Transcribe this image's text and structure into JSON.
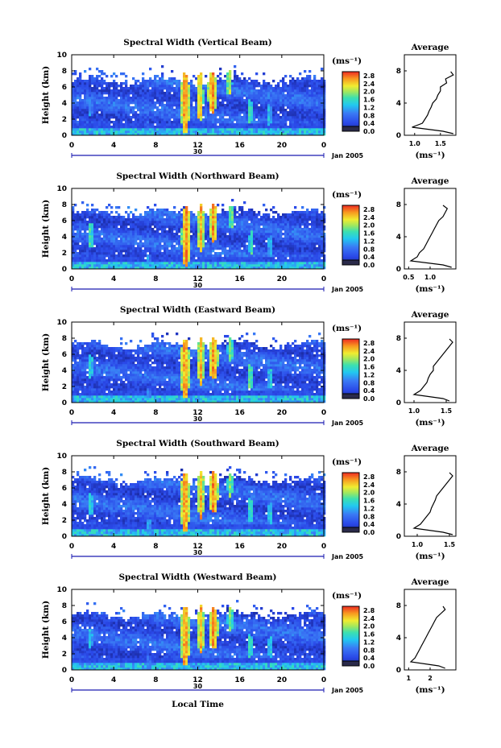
{
  "figure": {
    "xlabel": "Local Time",
    "day_label": "30",
    "month_label": "Jan 2005",
    "ylabel": "Height (km)",
    "colorbar_unit": "(ms⁻¹)",
    "average_title": "Average",
    "average_xlabel": "(ms⁻¹)"
  },
  "chart_data": [
    {
      "type": "heatmap",
      "title": "Spectral Width (Vertical Beam)",
      "x_ticks": [
        "0",
        "4",
        "8",
        "12",
        "16",
        "20",
        "0"
      ],
      "xlim": [
        0,
        24
      ],
      "y_ticks": [
        "0",
        "2",
        "4",
        "6",
        "8",
        "10"
      ],
      "ylim": [
        0,
        10
      ],
      "colorbar_ticks": [
        "0.0",
        "0.4",
        "0.8",
        "1.2",
        "1.6",
        "2.0",
        "2.4",
        "2.8"
      ],
      "clim": [
        0,
        3.0
      ],
      "echo_top_km": 6.8,
      "hotspots": [
        [
          1.8,
          3.5,
          0.25,
          1.2,
          1.4
        ],
        [
          7.2,
          1.2,
          0.25,
          0.6,
          1.0
        ],
        [
          10.8,
          4.0,
          0.45,
          3.8,
          3.0
        ],
        [
          12.2,
          4.8,
          0.35,
          3.0,
          2.8
        ],
        [
          13.4,
          5.3,
          0.45,
          2.6,
          3.0
        ],
        [
          15.0,
          6.5,
          0.3,
          1.5,
          2.4
        ],
        [
          17.0,
          3.0,
          0.25,
          1.5,
          2.0
        ],
        [
          18.8,
          2.6,
          0.25,
          1.4,
          1.6
        ]
      ],
      "avg_profile": {
        "xlim": [
          0.8,
          1.8
        ],
        "x_ticks": [
          "1.0",
          "1.5"
        ],
        "heights": [
          0.2,
          0.5,
          1.0,
          1.5,
          2.0,
          2.5,
          3.0,
          3.5,
          4.0,
          4.5,
          5.0,
          5.5,
          6.0,
          6.5,
          7.0,
          7.5,
          7.9
        ],
        "values": [
          1.75,
          1.55,
          0.95,
          1.15,
          1.2,
          1.25,
          1.28,
          1.32,
          1.35,
          1.42,
          1.45,
          1.5,
          1.5,
          1.62,
          1.6,
          1.75,
          1.7
        ]
      }
    },
    {
      "type": "heatmap",
      "title": "Spectral Width (Northward Beam)",
      "x_ticks": [
        "0",
        "4",
        "8",
        "12",
        "16",
        "20",
        "0"
      ],
      "xlim": [
        0,
        24
      ],
      "y_ticks": [
        "0",
        "2",
        "4",
        "6",
        "8",
        "10"
      ],
      "ylim": [
        0,
        10
      ],
      "colorbar_ticks": [
        "0.0",
        "0.4",
        "0.8",
        "1.2",
        "1.6",
        "2.0",
        "2.4",
        "2.8"
      ],
      "clim": [
        0,
        3.0
      ],
      "echo_top_km": 7.0,
      "hotspots": [
        [
          1.8,
          4.2,
          0.3,
          1.6,
          2.0
        ],
        [
          7.3,
          1.3,
          0.25,
          0.6,
          1.4
        ],
        [
          10.9,
          4.0,
          0.45,
          3.8,
          3.0
        ],
        [
          12.3,
          5.0,
          0.35,
          3.0,
          2.8
        ],
        [
          13.5,
          5.6,
          0.4,
          2.4,
          3.0
        ],
        [
          15.2,
          6.5,
          0.3,
          1.5,
          2.2
        ],
        [
          17.1,
          3.2,
          0.25,
          1.5,
          2.0
        ],
        [
          18.9,
          2.8,
          0.25,
          1.4,
          1.6
        ]
      ],
      "avg_profile": {
        "xlim": [
          0.4,
          1.6
        ],
        "x_ticks": [
          "0.5",
          "1.0"
        ],
        "heights": [
          0.2,
          0.5,
          1.0,
          1.5,
          2.0,
          2.5,
          3.0,
          3.5,
          4.0,
          4.5,
          5.0,
          5.5,
          6.0,
          6.5,
          7.0,
          7.5,
          7.9
        ],
        "values": [
          1.5,
          1.3,
          0.55,
          0.7,
          0.75,
          0.85,
          0.9,
          0.95,
          1.0,
          1.05,
          1.1,
          1.15,
          1.2,
          1.3,
          1.35,
          1.4,
          1.3
        ]
      }
    },
    {
      "type": "heatmap",
      "title": "Spectral Width (Eastward Beam)",
      "x_ticks": [
        "0",
        "4",
        "8",
        "12",
        "16",
        "20",
        "0"
      ],
      "xlim": [
        0,
        24
      ],
      "y_ticks": [
        "0",
        "2",
        "4",
        "6",
        "8",
        "10"
      ],
      "ylim": [
        0,
        10
      ],
      "colorbar_ticks": [
        "0.0",
        "0.4",
        "0.8",
        "1.2",
        "1.6",
        "2.0",
        "2.4",
        "2.8"
      ],
      "clim": [
        0,
        3.0
      ],
      "echo_top_km": 7.2,
      "hotspots": [
        [
          1.8,
          4.5,
          0.3,
          1.4,
          1.8
        ],
        [
          7.3,
          1.3,
          0.25,
          0.6,
          1.2
        ],
        [
          10.8,
          4.2,
          0.45,
          3.8,
          3.0
        ],
        [
          12.3,
          5.2,
          0.35,
          3.0,
          2.8
        ],
        [
          13.5,
          5.5,
          0.45,
          2.6,
          3.0
        ],
        [
          15.1,
          6.6,
          0.3,
          1.5,
          2.2
        ],
        [
          17.0,
          3.2,
          0.25,
          1.6,
          2.2
        ],
        [
          18.9,
          3.0,
          0.25,
          1.4,
          1.8
        ]
      ],
      "avg_profile": {
        "xlim": [
          0.85,
          1.65
        ],
        "x_ticks": [
          "1.0",
          "1.5"
        ],
        "heights": [
          0.2,
          0.5,
          1.0,
          1.5,
          2.0,
          2.5,
          3.0,
          3.5,
          4.0,
          4.5,
          5.0,
          5.5,
          6.0,
          6.5,
          7.0,
          7.5,
          7.9
        ],
        "values": [
          1.55,
          1.45,
          1.0,
          1.1,
          1.15,
          1.2,
          1.22,
          1.25,
          1.3,
          1.3,
          1.35,
          1.4,
          1.45,
          1.5,
          1.55,
          1.6,
          1.55
        ]
      }
    },
    {
      "type": "heatmap",
      "title": "Spectral Width (Southward Beam)",
      "x_ticks": [
        "0",
        "4",
        "8",
        "12",
        "16",
        "20",
        "0"
      ],
      "xlim": [
        0,
        24
      ],
      "y_ticks": [
        "0",
        "2",
        "4",
        "6",
        "8",
        "10"
      ],
      "ylim": [
        0,
        10
      ],
      "colorbar_ticks": [
        "0.0",
        "0.4",
        "0.8",
        "1.2",
        "1.6",
        "2.0",
        "2.4",
        "2.8"
      ],
      "clim": [
        0,
        3.0
      ],
      "echo_top_km": 6.9,
      "hotspots": [
        [
          1.8,
          4.0,
          0.3,
          1.4,
          1.8
        ],
        [
          7.3,
          1.5,
          0.25,
          0.7,
          1.6
        ],
        [
          10.8,
          4.2,
          0.45,
          3.8,
          3.0
        ],
        [
          12.3,
          5.2,
          0.35,
          3.0,
          2.8
        ],
        [
          13.5,
          5.5,
          0.45,
          2.6,
          3.0
        ],
        [
          15.1,
          6.4,
          0.3,
          1.5,
          2.2
        ],
        [
          17.0,
          3.2,
          0.25,
          1.6,
          2.0
        ],
        [
          18.9,
          2.8,
          0.25,
          1.4,
          1.8
        ]
      ],
      "avg_profile": {
        "xlim": [
          0.8,
          1.6
        ],
        "x_ticks": [
          "1.0",
          "1.5"
        ],
        "heights": [
          0.2,
          0.5,
          1.0,
          1.5,
          2.0,
          2.5,
          3.0,
          3.5,
          4.0,
          4.5,
          5.0,
          5.5,
          6.0,
          6.5,
          7.0,
          7.5,
          7.9
        ],
        "values": [
          1.55,
          1.4,
          0.95,
          1.05,
          1.1,
          1.15,
          1.2,
          1.22,
          1.25,
          1.28,
          1.3,
          1.35,
          1.4,
          1.45,
          1.5,
          1.55,
          1.5
        ]
      }
    },
    {
      "type": "heatmap",
      "title": "Spectral Width (Westward Beam)",
      "x_ticks": [
        "0",
        "4",
        "8",
        "12",
        "16",
        "20",
        "0"
      ],
      "xlim": [
        0,
        24
      ],
      "y_ticks": [
        "0",
        "2",
        "4",
        "6",
        "8",
        "10"
      ],
      "ylim": [
        0,
        10
      ],
      "colorbar_ticks": [
        "0.0",
        "0.4",
        "0.8",
        "1.2",
        "1.6",
        "2.0",
        "2.4",
        "2.8"
      ],
      "clim": [
        0,
        3.0
      ],
      "echo_top_km": 6.8,
      "hotspots": [
        [
          1.8,
          4.0,
          0.3,
          1.2,
          1.6
        ],
        [
          7.3,
          1.3,
          0.25,
          0.6,
          1.2
        ],
        [
          10.8,
          4.2,
          0.45,
          3.8,
          3.0
        ],
        [
          12.3,
          5.0,
          0.35,
          3.0,
          2.8
        ],
        [
          13.5,
          5.2,
          0.45,
          2.6,
          3.0
        ],
        [
          15.1,
          6.3,
          0.3,
          1.5,
          2.2
        ],
        [
          17.0,
          3.0,
          0.25,
          1.6,
          2.0
        ],
        [
          18.9,
          2.8,
          0.25,
          1.4,
          1.8
        ]
      ],
      "avg_profile": {
        "xlim": [
          0.8,
          3.2
        ],
        "x_ticks": [
          "1",
          "2"
        ],
        "heights": [
          0.2,
          0.5,
          1.0,
          1.5,
          2.0,
          2.5,
          3.0,
          3.5,
          4.0,
          4.5,
          5.0,
          5.5,
          6.0,
          6.5,
          7.0,
          7.5,
          7.9
        ],
        "values": [
          2.7,
          2.4,
          1.1,
          1.3,
          1.4,
          1.5,
          1.6,
          1.7,
          1.8,
          1.9,
          2.0,
          2.1,
          2.2,
          2.3,
          2.5,
          2.7,
          2.6
        ]
      }
    }
  ]
}
